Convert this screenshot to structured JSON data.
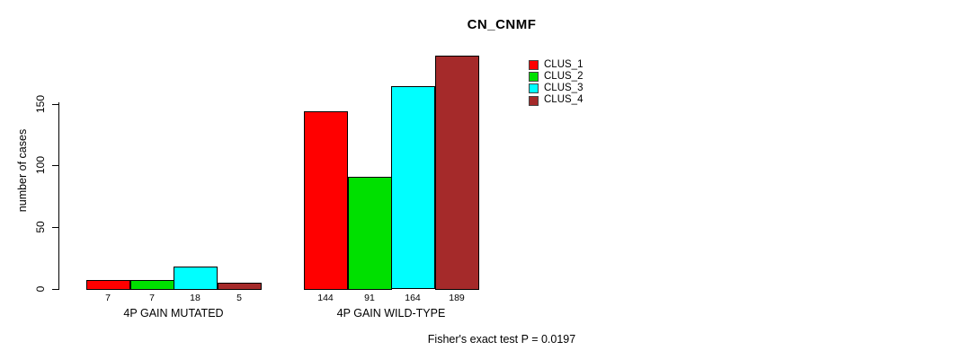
{
  "chart_data": {
    "type": "bar",
    "title": "CN_CNMF",
    "xlabel": "",
    "ylabel": "number of cases",
    "categories": [
      "4P GAIN MUTATED",
      "4P GAIN WILD-TYPE"
    ],
    "series": [
      {
        "name": "CLUS_1",
        "color": "#ff0000",
        "values": [
          7,
          144
        ]
      },
      {
        "name": "CLUS_2",
        "color": "#00e000",
        "values": [
          7,
          91
        ]
      },
      {
        "name": "CLUS_3",
        "color": "#00ffff",
        "values": [
          18,
          164
        ]
      },
      {
        "name": "CLUS_4",
        "color": "#a52a2a",
        "values": [
          5,
          189
        ]
      }
    ],
    "yticks": [
      "0",
      "50",
      "100",
      "150"
    ],
    "ytick_values": [
      0,
      50,
      100,
      150
    ],
    "ylim": [
      0,
      195
    ],
    "grid": false,
    "legend_position": "inside-top-right",
    "legend_entries": [
      "CLUS_1",
      "CLUS_2",
      "CLUS_3",
      "CLUS_4"
    ],
    "bar_value_labels": [
      [
        "7",
        "7",
        "18",
        "5"
      ],
      [
        "144",
        "91",
        "164",
        "189"
      ]
    ],
    "annotation": "Fisher's exact test P = 0.0197"
  },
  "colors": {
    "clus_1": "#ff0000",
    "clus_2": "#00e000",
    "clus_3": "#00ffff",
    "clus_4": "#a52a2a",
    "axis": "#000000",
    "background": "#ffffff"
  }
}
